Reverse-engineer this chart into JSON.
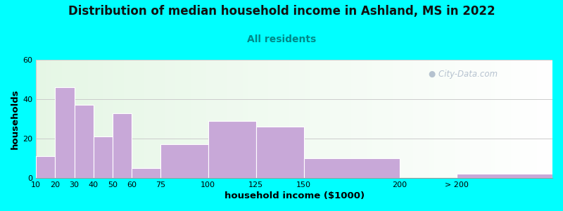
{
  "title": "Distribution of median household income in Ashland, MS in 2022",
  "subtitle": "All residents",
  "xlabel": "household income ($1000)",
  "ylabel": "households",
  "bar_color": "#c8a8d8",
  "bar_edgecolor": "#ffffff",
  "background_outer": "#00ffff",
  "ylim": [
    0,
    60
  ],
  "yticks": [
    0,
    20,
    40,
    60
  ],
  "bin_edges": [
    10,
    20,
    30,
    40,
    50,
    60,
    75,
    100,
    125,
    150,
    200,
    230,
    280
  ],
  "bar_heights": [
    11,
    46,
    37,
    21,
    33,
    5,
    17,
    29,
    26,
    10,
    0,
    2
  ],
  "xtick_positions": [
    10,
    20,
    30,
    40,
    50,
    60,
    75,
    100,
    125,
    150,
    200,
    230,
    280
  ],
  "xtick_labels": [
    "10",
    "20",
    "30",
    "40",
    "50",
    "60",
    "75",
    "100",
    "125",
    "150",
    "200",
    "> 200",
    ""
  ],
  "title_fontsize": 12,
  "subtitle_fontsize": 10,
  "axis_label_fontsize": 9.5,
  "tick_fontsize": 8,
  "watermark_text": "City-Data.com",
  "watermark_color": "#aab8c8",
  "subtitle_color": "#008888"
}
